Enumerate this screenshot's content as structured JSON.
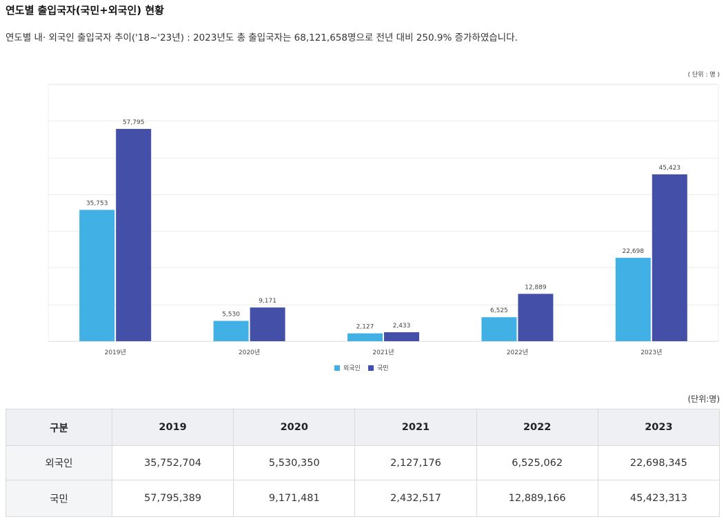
{
  "page": {
    "title": "연도별 출입국자(국민+외국인) 현황",
    "subtitle": "연도별 내· 외국인 출입국자 추이('18~'23년) : 2023년도 총 출입국자는 68,121,658명으로 전년 대비 250.9% 증가하였습니다."
  },
  "chart_unit": "( 단위 : 명 )",
  "chart_data": {
    "type": "bar",
    "categories": [
      "2019년",
      "2020년",
      "2021년",
      "2022년",
      "2023년"
    ],
    "series": [
      {
        "name": "외국인",
        "color": "#41b0e4",
        "values": [
          35753,
          5530,
          2127,
          6525,
          22698
        ],
        "labels": [
          "35,753",
          "5,530",
          "2,127",
          "6,525",
          "22,698"
        ]
      },
      {
        "name": "국민",
        "color": "#4450a8",
        "values": [
          57795,
          9171,
          2433,
          12889,
          45423
        ],
        "labels": [
          "57,795",
          "9,171",
          "2,433",
          "12,889",
          "45,423"
        ]
      }
    ],
    "ylim": [
      0,
      70000
    ],
    "y_gridlines": [
      10000,
      20000,
      30000,
      40000,
      50000,
      60000,
      70000
    ],
    "legend_position": "bottom-center",
    "grid": true
  },
  "table": {
    "unit": "(단위:명)",
    "headers": [
      "구분",
      "2019",
      "2020",
      "2021",
      "2022",
      "2023"
    ],
    "rows": [
      {
        "label": "외국인",
        "values": [
          "35,752,704",
          "5,530,350",
          "2,127,176",
          "6,525,062",
          "22,698,345"
        ]
      },
      {
        "label": "국민",
        "values": [
          "57,795,389",
          "9,171,481",
          "2,432,517",
          "12,889,166",
          "45,423,313"
        ]
      }
    ]
  }
}
